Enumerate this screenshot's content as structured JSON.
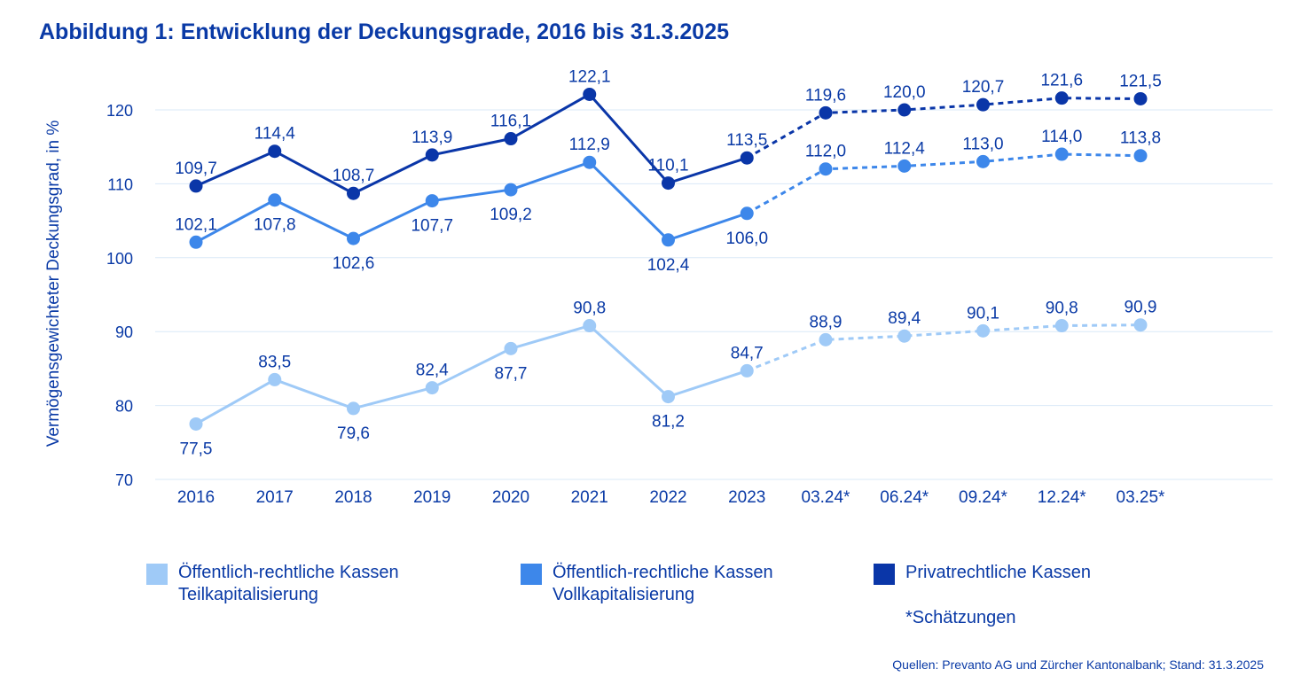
{
  "chart_data": {
    "type": "line",
    "title": "Abbildung 1: Entwicklung der Deckungsgrade, 2016 bis 31.3.2025",
    "ylabel": "Vermögensgewichteter Deckungsgrad, in %",
    "xlabel": "",
    "ylim": [
      70,
      122
    ],
    "yticks": [
      70,
      80,
      90,
      100,
      110,
      120
    ],
    "categories": [
      "2016",
      "2017",
      "2018",
      "2019",
      "2020",
      "2021",
      "2022",
      "2023",
      "03.24*",
      "06.24*",
      "09.24*",
      "12.24*",
      "03.25*"
    ],
    "estimate_from_index": 7,
    "grid": "horizontal",
    "series": [
      {
        "name": "Privatrechtliche Kassen",
        "color": "#0a36a8",
        "values": [
          109.7,
          114.4,
          108.7,
          113.9,
          116.1,
          122.1,
          110.1,
          113.5,
          119.6,
          120.0,
          120.7,
          121.6,
          121.5
        ],
        "labels": [
          "109,7",
          "114,4",
          "108,7",
          "113,9",
          "116,1",
          "122,1",
          "110,1",
          "113,5",
          "119,6",
          "120,0",
          "120,7",
          "121,6",
          "121,5"
        ],
        "label_pos": [
          "above",
          "above",
          "above",
          "above",
          "above",
          "above",
          "above",
          "above",
          "above",
          "above",
          "above",
          "above",
          "above"
        ]
      },
      {
        "name": "Öffentlich-rechtliche Kassen Vollkapitalisierung",
        "color": "#3d87ea",
        "values": [
          102.1,
          107.8,
          102.6,
          107.7,
          109.2,
          112.9,
          102.4,
          106.0,
          112.0,
          112.4,
          113.0,
          114.0,
          113.8
        ],
        "labels": [
          "102,1",
          "107,8",
          "102,6",
          "107,7",
          "109,2",
          "112,9",
          "102,4",
          "106,0",
          "112,0",
          "112,4",
          "113,0",
          "114,0",
          "113,8"
        ],
        "label_pos": [
          "above",
          "below",
          "below",
          "below",
          "below",
          "above",
          "below",
          "below",
          "above",
          "above",
          "above",
          "above",
          "above"
        ]
      },
      {
        "name": "Öffentlich-rechtliche Kassen Teilkapitalisierung",
        "color": "#9fcaf7",
        "values": [
          77.5,
          83.5,
          79.6,
          82.4,
          87.7,
          90.8,
          81.2,
          84.7,
          88.9,
          89.4,
          90.1,
          90.8,
          90.9
        ],
        "labels": [
          "77,5",
          "83,5",
          "79,6",
          "82,4",
          "87,7",
          "90,8",
          "81,2",
          "84,7",
          "88,9",
          "89,4",
          "90,1",
          "90,8",
          "90,9"
        ],
        "label_pos": [
          "below",
          "above",
          "below",
          "above",
          "below",
          "above",
          "below",
          "above",
          "above",
          "above",
          "above",
          "above",
          "above"
        ]
      }
    ]
  },
  "legend": {
    "items": [
      {
        "line1": "Öffentlich-rechtliche Kassen",
        "line2": "Teilkapitalisierung",
        "color": "#9fcaf7"
      },
      {
        "line1": "Öffentlich-rechtliche Kassen",
        "line2": "Vollkapitalisierung",
        "color": "#3d87ea"
      },
      {
        "line1": "Privatrechtliche Kassen",
        "line2": "",
        "color": "#0a36a8"
      }
    ],
    "note": "*Schätzungen"
  },
  "source": "Quellen: Prevanto AG und Zürcher Kantonalbank; Stand: 31.3.2025"
}
